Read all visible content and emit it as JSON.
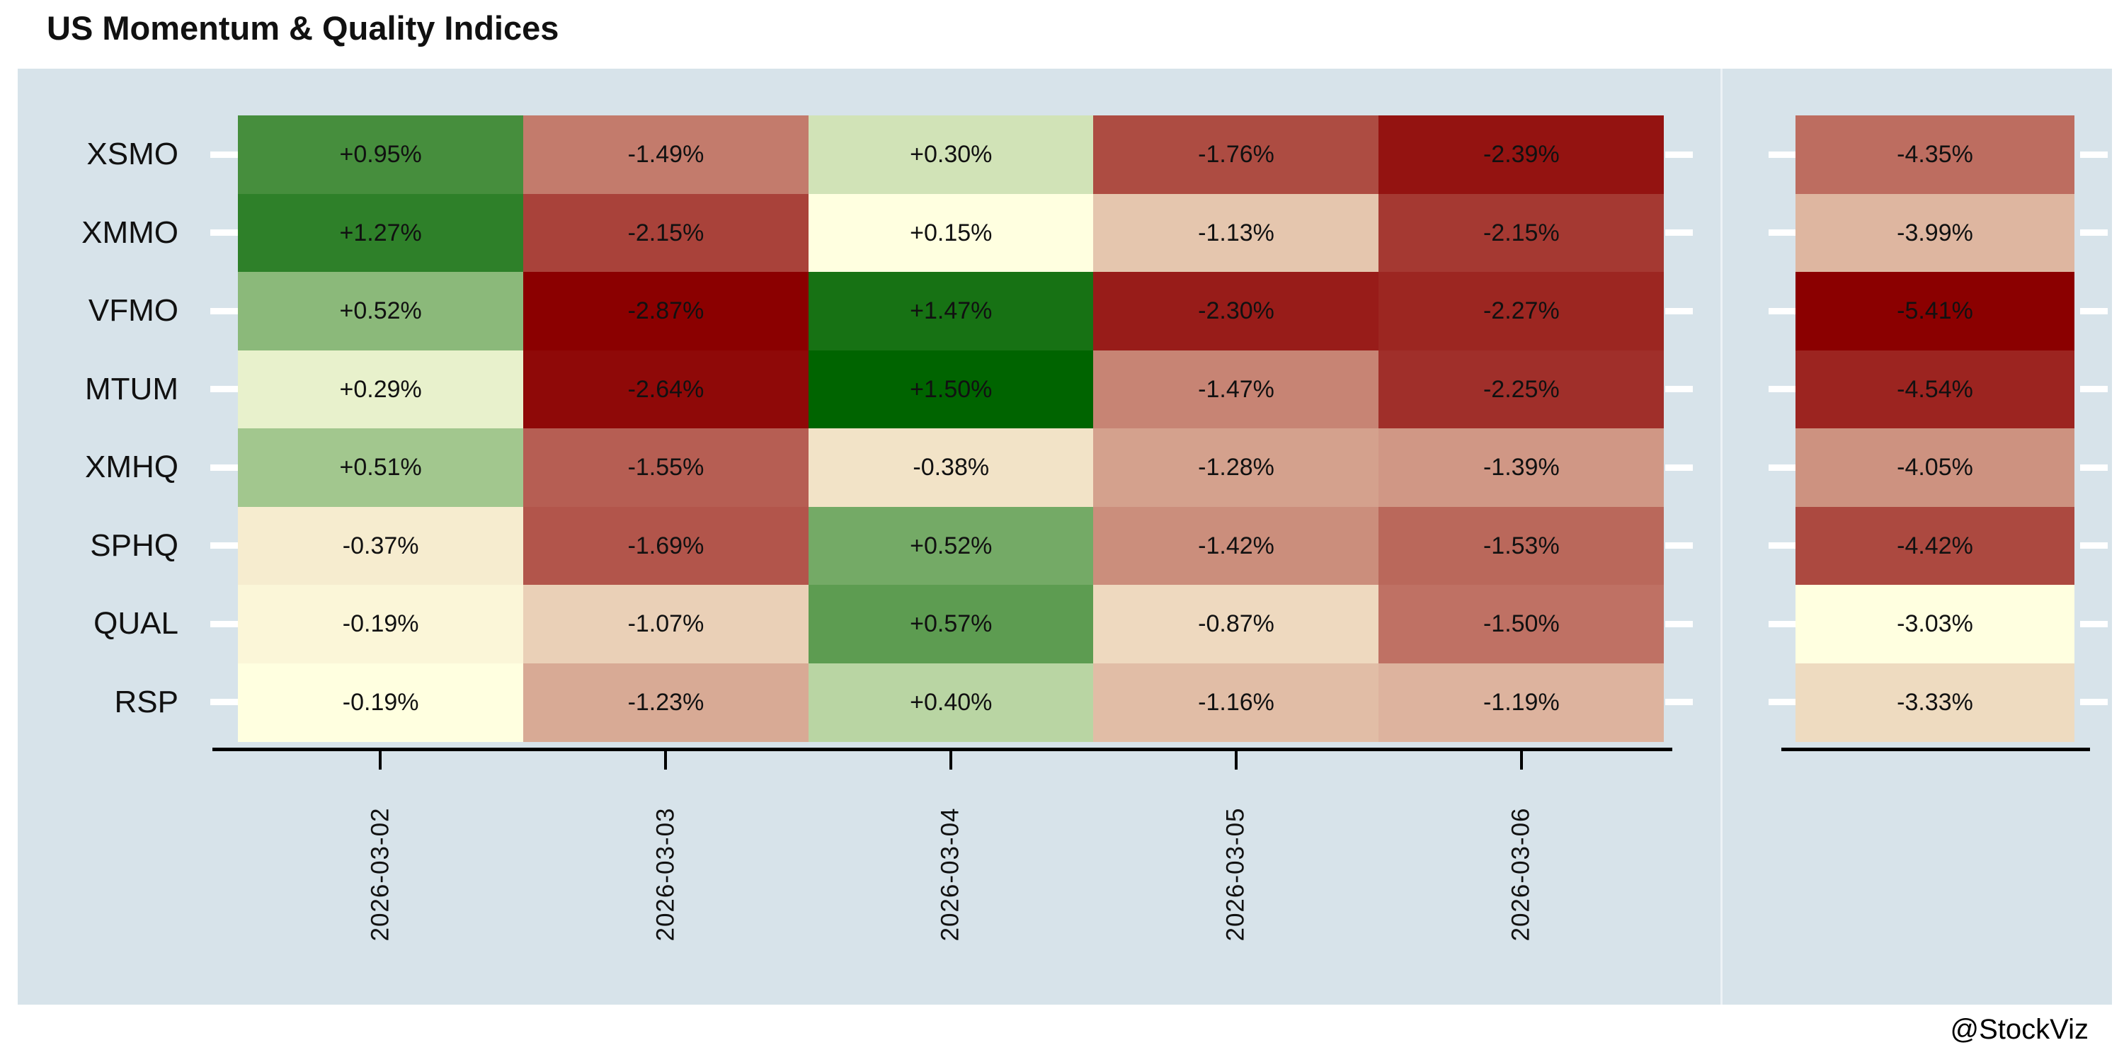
{
  "title": "US Momentum & Quality Indices",
  "attribution": "@StockViz",
  "colors": {
    "page_bg": "#ffffff",
    "panel_bg": "#d7e3ea",
    "axis": "#000000",
    "tick": "#ffffff",
    "text": "#111111",
    "negative_end": "#8b0000",
    "center": "#ffffe0",
    "positive_end": "#006400"
  },
  "chart_data": {
    "type": "heatmap",
    "title": "US Momentum & Quality Indices",
    "rows": [
      "XSMO",
      "XMMO",
      "VFMO",
      "MTUM",
      "XMHQ",
      "SPHQ",
      "QUAL",
      "RSP"
    ],
    "columns": [
      "2026-03-02",
      "2026-03-03",
      "2026-03-04",
      "2026-03-05",
      "2026-03-06"
    ],
    "column_label_rotation": 90,
    "values": [
      [
        0.95,
        -1.49,
        0.3,
        -1.76,
        -2.39
      ],
      [
        1.27,
        -2.15,
        0.15,
        -1.13,
        -2.15
      ],
      [
        0.52,
        -2.87,
        1.47,
        -2.3,
        -2.27
      ],
      [
        0.29,
        -2.64,
        1.5,
        -1.47,
        -2.25
      ],
      [
        0.51,
        -1.55,
        -0.38,
        -1.28,
        -1.39
      ],
      [
        -0.37,
        -1.69,
        0.52,
        -1.42,
        -1.53
      ],
      [
        -0.19,
        -1.07,
        0.57,
        -0.87,
        -1.5
      ],
      [
        -0.19,
        -1.23,
        0.4,
        -1.16,
        -1.19
      ]
    ],
    "labels": [
      [
        "+0.95%",
        "-1.49%",
        "+0.30%",
        "-1.76%",
        "-2.39%"
      ],
      [
        "+1.27%",
        "-2.15%",
        "+0.15%",
        "-1.13%",
        "-2.15%"
      ],
      [
        "+0.52%",
        "-2.87%",
        "+1.47%",
        "-2.30%",
        "-2.27%"
      ],
      [
        "+0.29%",
        "-2.64%",
        "+1.50%",
        "-1.47%",
        "-2.25%"
      ],
      [
        "+0.51%",
        "-1.55%",
        "-0.38%",
        "-1.28%",
        "-1.39%"
      ],
      [
        "-0.37%",
        "-1.69%",
        "+0.52%",
        "-1.42%",
        "-1.53%"
      ],
      [
        "-0.19%",
        "-1.07%",
        "+0.57%",
        "-0.87%",
        "-1.50%"
      ],
      [
        "-0.19%",
        "-1.23%",
        "+0.40%",
        "-1.16%",
        "-1.19%"
      ]
    ],
    "cell_colors": [
      [
        "#468e3d",
        "#c37b6c",
        "#d1e3b7",
        "#ad4c42",
        "#941311"
      ],
      [
        "#2e8029",
        "#a9423a",
        "#ffffe0",
        "#e5c6ae",
        "#a53932"
      ],
      [
        "#8bb97a",
        "#8b0000",
        "#177214",
        "#981c19",
        "#9c2621"
      ],
      [
        "#e8f1cc",
        "#8f0908",
        "#006400",
        "#c78474",
        "#a02f2a"
      ],
      [
        "#a2c78e",
        "#b65e53",
        "#f2e3c7",
        "#d4a18d",
        "#d09785"
      ],
      [
        "#f6eccf",
        "#b2554b",
        "#74aa66",
        "#cb8e7c",
        "#ba685b"
      ],
      [
        "#fbf6d8",
        "#ead0b7",
        "#5d9c51",
        "#eed9bf",
        "#bf7164"
      ],
      [
        "#ffffe0",
        "#d8aa95",
        "#b9d5a3",
        "#e1bda6",
        "#ddb39e"
      ]
    ],
    "summary_column": {
      "values": [
        -4.35,
        -3.99,
        -5.41,
        -4.54,
        -4.05,
        -4.42,
        -3.03,
        -3.33
      ],
      "labels": [
        "-4.35%",
        "-3.99%",
        "-5.41%",
        "-4.54%",
        "-4.05%",
        "-4.42%",
        "-3.03%",
        "-3.33%"
      ],
      "colors": [
        "#bd6d60",
        "#deb6a0",
        "#8b0000",
        "#9c2420",
        "#cd9280",
        "#ac4940",
        "#ffffe0",
        "#eedbc0"
      ]
    },
    "legend": "none",
    "grid": "off"
  }
}
